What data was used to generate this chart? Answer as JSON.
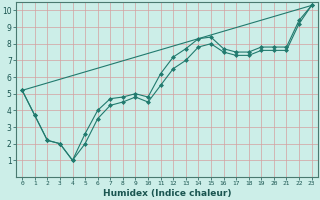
{
  "xlabel": "Humidex (Indice chaleur)",
  "xlim": [
    -0.5,
    23.5
  ],
  "ylim": [
    0,
    10.5
  ],
  "xticks": [
    0,
    1,
    2,
    3,
    4,
    5,
    6,
    7,
    8,
    9,
    10,
    11,
    12,
    13,
    14,
    15,
    16,
    17,
    18,
    19,
    20,
    21,
    22,
    23
  ],
  "yticks": [
    1,
    2,
    3,
    4,
    5,
    6,
    7,
    8,
    9,
    10
  ],
  "background_color": "#cceee8",
  "grid_color": "#b8ccc8",
  "line_color": "#217a6e",
  "series": [
    {
      "x": [
        0,
        1,
        2,
        3,
        4,
        5,
        6,
        7,
        8,
        9,
        10,
        11,
        12,
        13,
        14,
        15,
        16,
        17,
        18,
        19,
        20,
        21,
        22,
        23
      ],
      "y": [
        5.2,
        3.7,
        2.2,
        2.0,
        1.0,
        2.6,
        4.0,
        4.7,
        4.8,
        5.0,
        4.8,
        6.2,
        7.2,
        7.7,
        8.3,
        8.4,
        7.7,
        7.5,
        7.5,
        7.8,
        7.8,
        7.8,
        9.4,
        10.3
      ],
      "marker": "D",
      "markersize": 2.0
    },
    {
      "x": [
        0,
        23
      ],
      "y": [
        5.2,
        10.3
      ],
      "marker": null,
      "markersize": 0
    },
    {
      "x": [
        0,
        1,
        2,
        3,
        4,
        5,
        6,
        7,
        8,
        9,
        10,
        11,
        12,
        13,
        14,
        15,
        16,
        17,
        18,
        19,
        20,
        21,
        22,
        23
      ],
      "y": [
        5.2,
        3.7,
        2.2,
        2.0,
        1.0,
        2.0,
        3.5,
        4.3,
        4.5,
        4.8,
        4.5,
        5.5,
        6.5,
        7.0,
        7.8,
        8.0,
        7.5,
        7.3,
        7.3,
        7.6,
        7.6,
        7.6,
        9.2,
        10.3
      ],
      "marker": "D",
      "markersize": 2.0
    }
  ]
}
